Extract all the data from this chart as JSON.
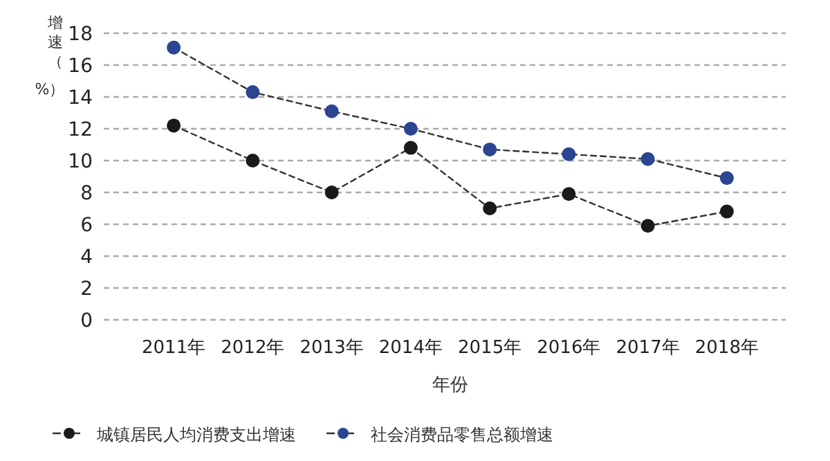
{
  "chart_data": {
    "type": "line",
    "xlabel": "年份",
    "ylabel": "增速（%）",
    "categories": [
      "2011年",
      "2012年",
      "2013年",
      "2014年",
      "2015年",
      "2016年",
      "2017年",
      "2018年"
    ],
    "series": [
      {
        "name": "城镇居民人均消费支出增速",
        "color": "#1a1a1a",
        "values": [
          12.2,
          10.0,
          8.0,
          10.8,
          7.0,
          7.9,
          5.9,
          6.8
        ]
      },
      {
        "name": "社会消费品零售总额增速",
        "color": "#2b4590",
        "values": [
          17.1,
          14.3,
          13.1,
          12.0,
          10.7,
          10.4,
          10.1,
          8.9
        ]
      }
    ],
    "ylim": [
      0,
      18
    ],
    "yticks": [
      0,
      2,
      4,
      6,
      8,
      10,
      12,
      14,
      16,
      18
    ],
    "grid": "y",
    "legend": "bottom",
    "marker": "circle",
    "line_style": "dashed"
  }
}
